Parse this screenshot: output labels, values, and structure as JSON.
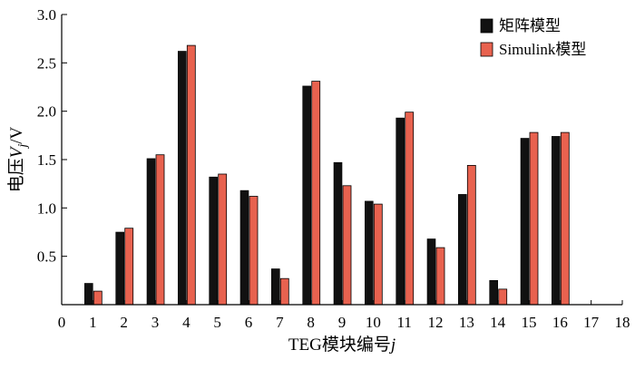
{
  "chart_data": {
    "type": "bar",
    "categories": [
      "1",
      "2",
      "3",
      "4",
      "5",
      "6",
      "7",
      "8",
      "9",
      "10",
      "11",
      "12",
      "13",
      "14",
      "15",
      "16"
    ],
    "series": [
      {
        "name": "矩阵模型",
        "color": "#111111",
        "values": [
          0.22,
          0.75,
          1.51,
          2.62,
          1.32,
          1.18,
          0.37,
          2.26,
          1.47,
          1.07,
          1.93,
          0.68,
          1.14,
          0.25,
          1.72,
          1.74
        ]
      },
      {
        "name": "Simulink模型",
        "color": "#e8624f",
        "values": [
          0.14,
          0.79,
          1.55,
          2.68,
          1.35,
          1.12,
          0.27,
          2.31,
          1.23,
          1.04,
          1.99,
          0.59,
          1.44,
          0.16,
          1.78,
          1.78
        ]
      }
    ],
    "x_ticks": [
      "0",
      "1",
      "2",
      "3",
      "4",
      "5",
      "6",
      "7",
      "8",
      "9",
      "10",
      "11",
      "12",
      "13",
      "14",
      "15",
      "16",
      "17",
      "18"
    ],
    "y_ticks": [
      "0.5",
      "1.0",
      "1.5",
      "2.0",
      "2.5",
      "3.0"
    ],
    "y_tick_values": [
      0.5,
      1.0,
      1.5,
      2.0,
      2.5,
      3.0
    ],
    "xlim": [
      0,
      18
    ],
    "ylim": [
      0,
      3.0
    ],
    "xlabel": {
      "prefix": "TEG模块编号",
      "var": "j"
    },
    "ylabel": {
      "prefix": "电压",
      "var": "V",
      "sub": "j",
      "suffix": "/V"
    },
    "legend": "top-right",
    "grid": false
  }
}
